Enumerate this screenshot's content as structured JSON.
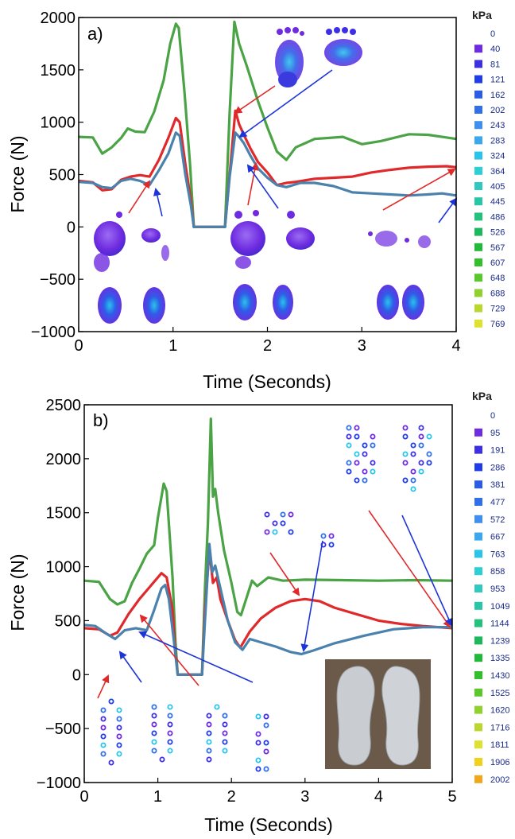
{
  "chart_data": [
    {
      "panel_label": "a)",
      "type": "line",
      "xlabel": "Time (Seconds)",
      "ylabel": "Force (N)",
      "xlim": [
        0,
        4
      ],
      "ylim": [
        -1000,
        2000
      ],
      "xticks": [
        0,
        1,
        2,
        3,
        4
      ],
      "yticks": [
        -1000,
        -500,
        0,
        500,
        1000,
        1500,
        2000
      ],
      "grid": false,
      "series": [
        {
          "color": "#4aa345",
          "points": [
            [
              0,
              860
            ],
            [
              0.15,
              855
            ],
            [
              0.25,
              700
            ],
            [
              0.35,
              760
            ],
            [
              0.45,
              850
            ],
            [
              0.52,
              940
            ],
            [
              0.6,
              910
            ],
            [
              0.7,
              905
            ],
            [
              0.8,
              1100
            ],
            [
              0.9,
              1400
            ],
            [
              0.97,
              1750
            ],
            [
              1.03,
              1940
            ],
            [
              1.06,
              1900
            ],
            [
              1.12,
              1300
            ],
            [
              1.18,
              600
            ],
            [
              1.22,
              0
            ],
            [
              1.55,
              0
            ],
            [
              1.6,
              1100
            ],
            [
              1.65,
              1960
            ],
            [
              1.7,
              1750
            ],
            [
              1.78,
              1540
            ],
            [
              1.9,
              1200
            ],
            [
              2.0,
              950
            ],
            [
              2.1,
              720
            ],
            [
              2.2,
              640
            ],
            [
              2.3,
              760
            ],
            [
              2.5,
              840
            ],
            [
              2.8,
              860
            ],
            [
              3.0,
              790
            ],
            [
              3.2,
              820
            ],
            [
              3.5,
              885
            ],
            [
              3.7,
              880
            ],
            [
              3.85,
              860
            ],
            [
              4.0,
              840
            ]
          ]
        },
        {
          "color": "#e0292a",
          "points": [
            [
              0,
              440
            ],
            [
              0.15,
              425
            ],
            [
              0.25,
              350
            ],
            [
              0.35,
              360
            ],
            [
              0.45,
              450
            ],
            [
              0.55,
              480
            ],
            [
              0.65,
              495
            ],
            [
              0.75,
              480
            ],
            [
              0.85,
              640
            ],
            [
              0.95,
              850
            ],
            [
              1.03,
              1040
            ],
            [
              1.07,
              1000
            ],
            [
              1.13,
              600
            ],
            [
              1.19,
              250
            ],
            [
              1.22,
              0
            ],
            [
              1.55,
              0
            ],
            [
              1.6,
              500
            ],
            [
              1.66,
              1110
            ],
            [
              1.7,
              980
            ],
            [
              1.75,
              880
            ],
            [
              1.82,
              750
            ],
            [
              1.9,
              620
            ],
            [
              2.0,
              520
            ],
            [
              2.1,
              400
            ],
            [
              2.2,
              420
            ],
            [
              2.3,
              430
            ],
            [
              2.5,
              460
            ],
            [
              2.7,
              470
            ],
            [
              2.9,
              480
            ],
            [
              3.1,
              520
            ],
            [
              3.3,
              545
            ],
            [
              3.5,
              565
            ],
            [
              3.7,
              575
            ],
            [
              3.9,
              580
            ],
            [
              4.0,
              570
            ]
          ]
        },
        {
          "color": "#4a82ad",
          "points": [
            [
              0,
              430
            ],
            [
              0.15,
              420
            ],
            [
              0.25,
              380
            ],
            [
              0.35,
              370
            ],
            [
              0.45,
              440
            ],
            [
              0.55,
              460
            ],
            [
              0.65,
              440
            ],
            [
              0.75,
              400
            ],
            [
              0.85,
              540
            ],
            [
              0.95,
              700
            ],
            [
              1.03,
              900
            ],
            [
              1.07,
              870
            ],
            [
              1.13,
              500
            ],
            [
              1.19,
              200
            ],
            [
              1.22,
              0
            ],
            [
              1.55,
              0
            ],
            [
              1.6,
              480
            ],
            [
              1.66,
              900
            ],
            [
              1.7,
              860
            ],
            [
              1.75,
              800
            ],
            [
              1.82,
              680
            ],
            [
              1.9,
              560
            ],
            [
              2.0,
              470
            ],
            [
              2.1,
              400
            ],
            [
              2.2,
              380
            ],
            [
              2.35,
              420
            ],
            [
              2.5,
              420
            ],
            [
              2.7,
              390
            ],
            [
              2.9,
              330
            ],
            [
              3.1,
              320
            ],
            [
              3.3,
              310
            ],
            [
              3.5,
              300
            ],
            [
              3.7,
              310
            ],
            [
              3.85,
              320
            ],
            [
              4.0,
              300
            ]
          ]
        }
      ]
    },
    {
      "panel_label": "b)",
      "type": "line",
      "xlabel": "Time (Seconds)",
      "ylabel": "Force (N)",
      "xlim": [
        0,
        5
      ],
      "ylim": [
        -1000,
        2500
      ],
      "xticks": [
        0,
        1,
        2,
        3,
        4,
        5
      ],
      "yticks": [
        -1000,
        -500,
        0,
        500,
        1000,
        1500,
        2000,
        2500
      ],
      "grid": false,
      "series": [
        {
          "color": "#4aa345",
          "points": [
            [
              0,
              870
            ],
            [
              0.2,
              860
            ],
            [
              0.35,
              700
            ],
            [
              0.45,
              650
            ],
            [
              0.55,
              680
            ],
            [
              0.65,
              850
            ],
            [
              0.75,
              980
            ],
            [
              0.85,
              1120
            ],
            [
              0.95,
              1200
            ],
            [
              1.0,
              1450
            ],
            [
              1.08,
              1770
            ],
            [
              1.12,
              1700
            ],
            [
              1.2,
              900
            ],
            [
              1.24,
              300
            ],
            [
              1.27,
              0
            ],
            [
              1.6,
              0
            ],
            [
              1.64,
              800
            ],
            [
              1.68,
              1400
            ],
            [
              1.72,
              2370
            ],
            [
              1.75,
              1650
            ],
            [
              1.78,
              1720
            ],
            [
              1.82,
              1500
            ],
            [
              1.9,
              1150
            ],
            [
              2.0,
              850
            ],
            [
              2.08,
              580
            ],
            [
              2.13,
              550
            ],
            [
              2.2,
              700
            ],
            [
              2.28,
              870
            ],
            [
              2.35,
              820
            ],
            [
              2.5,
              900
            ],
            [
              2.7,
              870
            ],
            [
              3.0,
              880
            ],
            [
              3.5,
              875
            ],
            [
              4.0,
              870
            ],
            [
              4.5,
              875
            ],
            [
              5.0,
              870
            ]
          ]
        },
        {
          "color": "#e0292a",
          "points": [
            [
              0,
              430
            ],
            [
              0.2,
              420
            ],
            [
              0.35,
              360
            ],
            [
              0.45,
              390
            ],
            [
              0.6,
              560
            ],
            [
              0.75,
              700
            ],
            [
              0.9,
              820
            ],
            [
              1.05,
              940
            ],
            [
              1.12,
              900
            ],
            [
              1.2,
              600
            ],
            [
              1.24,
              200
            ],
            [
              1.27,
              0
            ],
            [
              1.6,
              0
            ],
            [
              1.64,
              600
            ],
            [
              1.7,
              1150
            ],
            [
              1.75,
              850
            ],
            [
              1.8,
              900
            ],
            [
              1.85,
              700
            ],
            [
              1.95,
              500
            ],
            [
              2.05,
              320
            ],
            [
              2.12,
              250
            ],
            [
              2.25,
              400
            ],
            [
              2.4,
              520
            ],
            [
              2.6,
              620
            ],
            [
              2.8,
              680
            ],
            [
              3.0,
              700
            ],
            [
              3.2,
              680
            ],
            [
              3.4,
              620
            ],
            [
              3.7,
              560
            ],
            [
              4.0,
              500
            ],
            [
              4.3,
              470
            ],
            [
              4.6,
              450
            ],
            [
              5.0,
              430
            ]
          ]
        },
        {
          "color": "#4a82ad",
          "points": [
            [
              0,
              460
            ],
            [
              0.15,
              450
            ],
            [
              0.3,
              380
            ],
            [
              0.42,
              330
            ],
            [
              0.55,
              410
            ],
            [
              0.7,
              430
            ],
            [
              0.85,
              410
            ],
            [
              0.95,
              600
            ],
            [
              1.05,
              800
            ],
            [
              1.1,
              830
            ],
            [
              1.15,
              700
            ],
            [
              1.22,
              300
            ],
            [
              1.27,
              0
            ],
            [
              1.6,
              0
            ],
            [
              1.64,
              500
            ],
            [
              1.7,
              1210
            ],
            [
              1.74,
              950
            ],
            [
              1.78,
              1010
            ],
            [
              1.85,
              800
            ],
            [
              1.95,
              500
            ],
            [
              2.05,
              300
            ],
            [
              2.15,
              230
            ],
            [
              2.25,
              330
            ],
            [
              2.4,
              300
            ],
            [
              2.6,
              260
            ],
            [
              2.8,
              210
            ],
            [
              2.95,
              190
            ],
            [
              3.1,
              220
            ],
            [
              3.4,
              290
            ],
            [
              3.8,
              360
            ],
            [
              4.2,
              420
            ],
            [
              4.6,
              440
            ],
            [
              5.0,
              440
            ]
          ]
        }
      ]
    }
  ],
  "colorbars": [
    {
      "unit": "kPa",
      "labels": [
        "0",
        "40",
        "81",
        "121",
        "162",
        "202",
        "243",
        "283",
        "324",
        "364",
        "405",
        "445",
        "486",
        "526",
        "567",
        "607",
        "648",
        "688",
        "729",
        "769"
      ],
      "colors": [
        "#ffffff",
        "#6e2be0",
        "#3d2fe3",
        "#1e3ce8",
        "#2a5ce8",
        "#2f70ea",
        "#3f8ff0",
        "#3aa7ef",
        "#28c4ea",
        "#2ad0d6",
        "#2fc9bf",
        "#26c6a6",
        "#22c27d",
        "#1cb95c",
        "#20b93a",
        "#30c02a",
        "#5ac82a",
        "#8fd12e",
        "#bad72e",
        "#dde22c"
      ]
    },
    {
      "unit": "kPa",
      "labels": [
        "0",
        "95",
        "191",
        "286",
        "381",
        "477",
        "572",
        "667",
        "763",
        "858",
        "953",
        "1049",
        "1144",
        "1239",
        "1335",
        "1430",
        "1525",
        "1620",
        "1716",
        "1811",
        "1906",
        "2002"
      ],
      "colors": [
        "#ffffff",
        "#6e2be0",
        "#3d2fe3",
        "#1e3ce8",
        "#2a5ce8",
        "#2f70ea",
        "#3f8ff0",
        "#3aa7ef",
        "#28c4ea",
        "#2ad0d6",
        "#2fc9bf",
        "#26c6a6",
        "#22c27d",
        "#1cb95c",
        "#20b93a",
        "#30c02a",
        "#5ac82a",
        "#8fd12e",
        "#bad72e",
        "#dde22c",
        "#f2d11d",
        "#f2a71b"
      ]
    }
  ]
}
